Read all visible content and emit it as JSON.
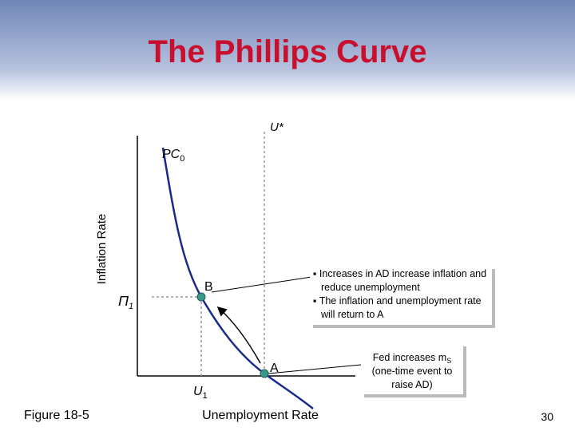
{
  "header": {
    "title": "The Phillips Curve"
  },
  "diagram": {
    "y_axis_label": "Inflation Rate",
    "x_axis_label": "Unemployment Rate",
    "natural_rate": "U*",
    "curve": {
      "name": "PC",
      "subscript": "0"
    },
    "inflation_level": {
      "name": "Π",
      "subscript": "1"
    },
    "unemployment_level": {
      "name": "U",
      "subscript": "1"
    },
    "points": [
      "B",
      "A"
    ],
    "note_box": {
      "bullets": [
        "Increases in AD increase inflation and reduce unemployment",
        "The inflation and unemployment rate will return to A"
      ]
    },
    "event_box": {
      "lines": [
        "Fed increases m",
        "S",
        "(one-time event to",
        "raise AD)"
      ]
    }
  },
  "footer": {
    "figure": "Figure 18-5",
    "page": "30"
  }
}
